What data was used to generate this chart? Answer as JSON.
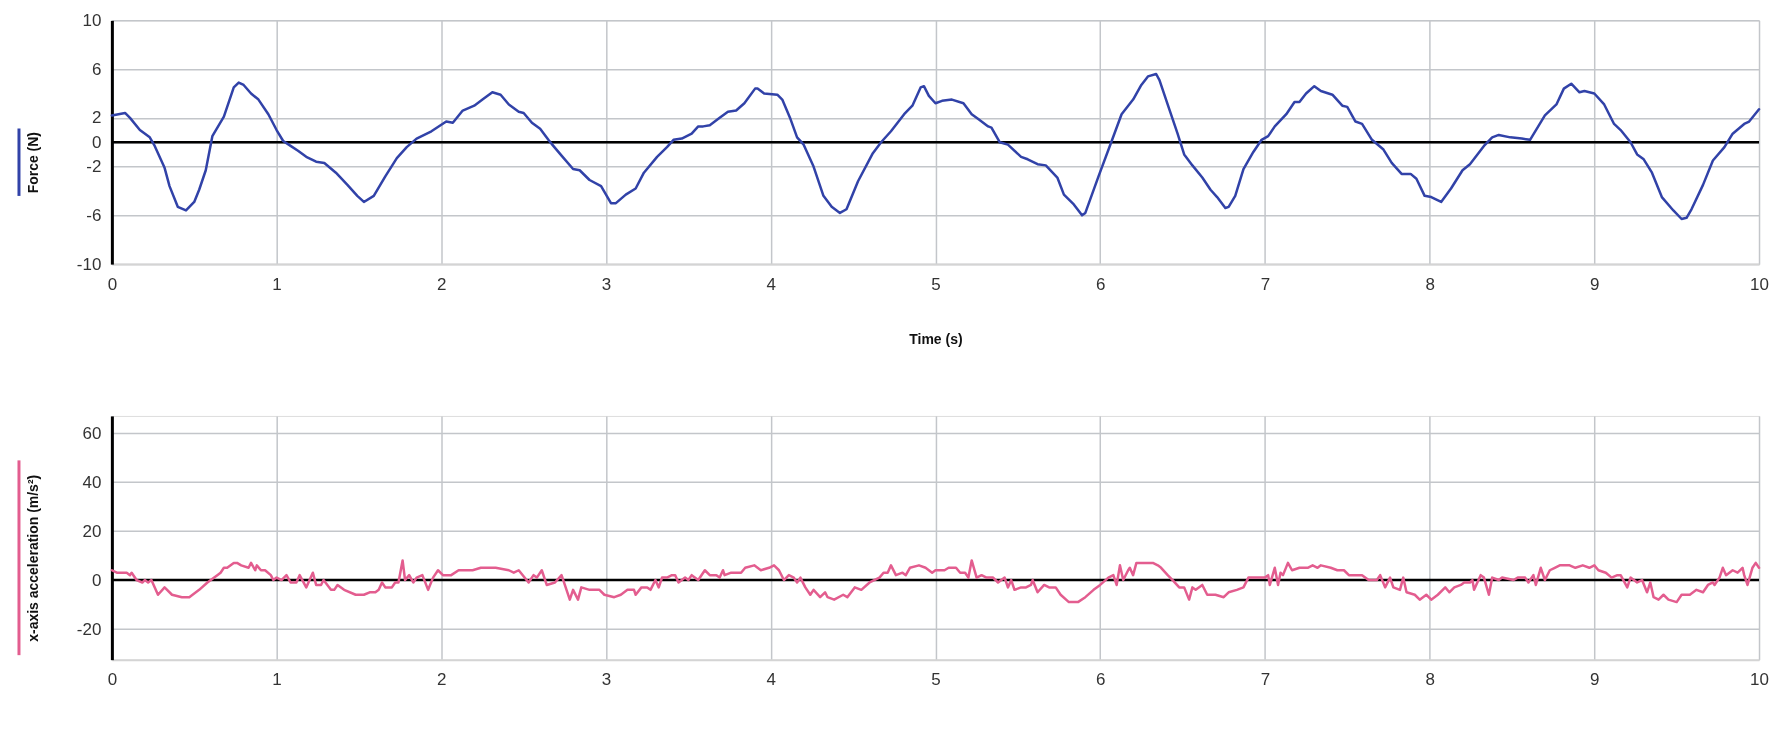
{
  "chart_data": [
    {
      "type": "line",
      "xlabel": "Time (s)",
      "ylabel": "Force (N)",
      "xlim": [
        0,
        10
      ],
      "xticks": [
        0,
        1,
        2,
        3,
        4,
        5,
        6,
        7,
        8,
        9,
        10
      ],
      "ylim": [
        -10,
        10
      ],
      "yticks": [
        -10,
        -6,
        -2,
        0,
        2,
        6,
        10
      ],
      "grid": true,
      "ref_lines": [
        {
          "axis": "y",
          "value": 0,
          "color": "#000000"
        }
      ],
      "series": [
        {
          "color": "#3142a8",
          "x": [
            0,
            0.08,
            0.11,
            0.17,
            0.23,
            0.26,
            0.32,
            0.35,
            0.4,
            0.45,
            0.5,
            0.53,
            0.57,
            0.61,
            0.68,
            0.74,
            0.77,
            0.8,
            0.845,
            0.89,
            0.95,
            1.0,
            1.04,
            1.085,
            1.13,
            1.18,
            1.24,
            1.29,
            1.36,
            1.43,
            1.49,
            1.53,
            1.59,
            1.66,
            1.73,
            1.79,
            1.85,
            1.94,
            2.03,
            2.07,
            2.13,
            2.2,
            2.25,
            2.31,
            2.36,
            2.41,
            2.47,
            2.5,
            2.55,
            2.6,
            2.65,
            2.68,
            2.73,
            2.8,
            2.84,
            2.9,
            2.97,
            3.03,
            3.06,
            3.12,
            3.18,
            3.23,
            3.31,
            3.37,
            3.41,
            3.46,
            3.52,
            3.56,
            3.59,
            3.63,
            3.69,
            3.74,
            3.79,
            3.84,
            3.905,
            3.92,
            3.96,
            4.04,
            4.07,
            4.12,
            4.16,
            4.2,
            4.26,
            4.32,
            4.37,
            4.42,
            4.46,
            4.53,
            4.62,
            4.67,
            4.73,
            4.81,
            4.86,
            4.91,
            4.93,
            4.96,
            5.0,
            5.04,
            5.1,
            5.17,
            5.22,
            5.26,
            5.32,
            5.34,
            5.39,
            5.44,
            5.52,
            5.56,
            5.62,
            5.67,
            5.74,
            5.78,
            5.84,
            5.89,
            5.91,
            5.99,
            6.07,
            6.13,
            6.2,
            6.25,
            6.29,
            6.34,
            6.36,
            6.42,
            6.47,
            6.51,
            6.56,
            6.62,
            6.67,
            6.71,
            6.76,
            6.78,
            6.82,
            6.87,
            6.93,
            6.98,
            7.02,
            7.06,
            7.13,
            7.18,
            7.21,
            7.25,
            7.3,
            7.34,
            7.41,
            7.47,
            7.5,
            7.55,
            7.59,
            7.65,
            7.72,
            7.77,
            7.83,
            7.885,
            7.92,
            7.97,
            8.01,
            8.07,
            8.13,
            8.2,
            8.245,
            8.33,
            8.38,
            8.42,
            8.49,
            8.56,
            8.61,
            8.7,
            8.77,
            8.815,
            8.86,
            8.91,
            8.94,
            9.0,
            9.06,
            9.12,
            9.16,
            9.22,
            9.26,
            9.3,
            9.35,
            9.41,
            9.48,
            9.53,
            9.56,
            9.59,
            9.66,
            9.72,
            9.79,
            9.84,
            9.91,
            9.94,
            10.0
          ],
          "values": [
            2.2,
            2.4,
            2.0,
            1.0,
            0.4,
            -0.3,
            -2.1,
            -3.6,
            -5.3,
            -5.6,
            -4.9,
            -3.9,
            -2.3,
            0.5,
            2.1,
            4.5,
            4.9,
            4.7,
            4.0,
            3.5,
            2.3,
            1.0,
            0.1,
            -0.3,
            -0.7,
            -1.2,
            -1.6,
            -1.7,
            -2.5,
            -3.5,
            -4.4,
            -4.9,
            -4.4,
            -2.8,
            -1.3,
            -0.4,
            0.3,
            0.9,
            1.7,
            1.6,
            2.6,
            3.0,
            3.5,
            4.1,
            3.9,
            3.1,
            2.5,
            2.4,
            1.6,
            1.1,
            0.2,
            -0.3,
            -1.1,
            -2.2,
            -2.3,
            -3.1,
            -3.6,
            -5.0,
            -5.0,
            -4.3,
            -3.8,
            -2.5,
            -1.2,
            -0.4,
            0.2,
            0.3,
            0.7,
            1.3,
            1.3,
            1.4,
            2.0,
            2.5,
            2.6,
            3.2,
            4.4,
            4.4,
            4.0,
            3.9,
            3.5,
            1.9,
            0.4,
            -0.2,
            -2.0,
            -4.4,
            -5.3,
            -5.8,
            -5.5,
            -3.2,
            -0.9,
            0.0,
            0.9,
            2.3,
            3.0,
            4.5,
            4.6,
            3.8,
            3.2,
            3.4,
            3.5,
            3.2,
            2.3,
            1.9,
            1.3,
            1.2,
            0.0,
            -0.2,
            -1.2,
            -1.4,
            -1.8,
            -1.9,
            -2.9,
            -4.3,
            -5.1,
            -6.0,
            -5.8,
            -2.8,
            0.1,
            2.3,
            3.5,
            4.7,
            5.4,
            5.6,
            5.1,
            2.7,
            0.7,
            -1.0,
            -1.9,
            -2.9,
            -3.9,
            -4.5,
            -5.4,
            -5.3,
            -4.4,
            -2.2,
            -0.8,
            0.2,
            0.5,
            1.3,
            2.3,
            3.3,
            3.3,
            4.0,
            4.6,
            4.2,
            3.9,
            3.0,
            2.9,
            1.7,
            1.5,
            0.2,
            -0.6,
            -1.7,
            -2.6,
            -2.6,
            -3.0,
            -4.4,
            -4.5,
            -4.9,
            -3.8,
            -2.3,
            -1.8,
            -0.3,
            0.4,
            0.6,
            0.4,
            0.3,
            0.2,
            2.2,
            3.1,
            4.4,
            4.8,
            4.1,
            4.2,
            4.0,
            3.1,
            1.5,
            1.0,
            0.0,
            -1.0,
            -1.4,
            -2.5,
            -4.5,
            -5.6,
            -6.3,
            -6.2,
            -5.5,
            -3.5,
            -1.5,
            -0.4,
            0.7,
            1.5,
            1.7,
            2.7
          ]
        }
      ]
    },
    {
      "type": "line",
      "ylabel": "x-axis acceleration (m/s²)",
      "xlim": [
        0,
        10
      ],
      "xticks": [
        0,
        1,
        2,
        3,
        4,
        5,
        6,
        7,
        8,
        9,
        10
      ],
      "ylim": [
        -32.5,
        67
      ],
      "yticks": [
        -20,
        0,
        20,
        40,
        60
      ],
      "grid": true,
      "ref_lines": [
        {
          "axis": "y",
          "value": 0,
          "color": "#000000"
        }
      ],
      "series": [
        {
          "color": "#e35d8f",
          "x": [
            0,
            0.03,
            0.065,
            0.09,
            0.11,
            0.12,
            0.15,
            0.185,
            0.2,
            0.22,
            0.24,
            0.28,
            0.32,
            0.365,
            0.425,
            0.47,
            0.53,
            0.58,
            0.64,
            0.66,
            0.68,
            0.7,
            0.74,
            0.76,
            0.785,
            0.83,
            0.845,
            0.87,
            0.88,
            0.905,
            0.93,
            0.965,
            0.98,
            1.0,
            1.03,
            1.06,
            1.085,
            1.12,
            1.14,
            1.18,
            1.22,
            1.24,
            1.27,
            1.285,
            1.33,
            1.35,
            1.37,
            1.41,
            1.48,
            1.53,
            1.565,
            1.6,
            1.62,
            1.64,
            1.66,
            1.7,
            1.72,
            1.74,
            1.765,
            1.78,
            1.805,
            1.83,
            1.85,
            1.885,
            1.92,
            1.95,
            1.98,
            2.01,
            2.06,
            2.105,
            2.15,
            2.19,
            2.24,
            2.33,
            2.41,
            2.44,
            2.47,
            2.53,
            2.56,
            2.58,
            2.61,
            2.64,
            2.69,
            2.73,
            2.75,
            2.78,
            2.8,
            2.83,
            2.85,
            2.9,
            2.96,
            2.99,
            3.05,
            3.09,
            3.13,
            3.17,
            3.18,
            3.215,
            3.25,
            3.27,
            3.3,
            3.32,
            3.34,
            3.37,
            3.4,
            3.42,
            3.44,
            3.48,
            3.5,
            3.52,
            3.56,
            3.6,
            3.63,
            3.67,
            3.69,
            3.71,
            3.72,
            3.76,
            3.82,
            3.845,
            3.9,
            3.94,
            3.99,
            4.02,
            4.05,
            4.08,
            4.11,
            4.14,
            4.16,
            4.18,
            4.21,
            4.24,
            4.26,
            4.3,
            4.33,
            4.345,
            4.385,
            4.44,
            4.465,
            4.51,
            4.55,
            4.6,
            4.66,
            4.685,
            4.71,
            4.73,
            4.76,
            4.8,
            4.82,
            4.845,
            4.9,
            4.94,
            4.98,
            5.0,
            5.055,
            5.08,
            5.125,
            5.15,
            5.18,
            5.2,
            5.22,
            5.25,
            5.28,
            5.31,
            5.35,
            5.38,
            5.42,
            5.44,
            5.46,
            5.48,
            5.52,
            5.55,
            5.58,
            5.59,
            5.62,
            5.66,
            5.69,
            5.73,
            5.76,
            5.81,
            5.865,
            5.91,
            5.96,
            6.0,
            6.05,
            6.08,
            6.1,
            6.12,
            6.14,
            6.17,
            6.18,
            6.2,
            6.22,
            6.32,
            6.35,
            6.37,
            6.41,
            6.44,
            6.48,
            6.51,
            6.54,
            6.56,
            6.58,
            6.62,
            6.65,
            6.7,
            6.75,
            6.78,
            6.83,
            6.87,
            6.9,
            6.96,
            7.0,
            7.02,
            7.03,
            7.06,
            7.08,
            7.095,
            7.11,
            7.14,
            7.165,
            7.21,
            7.26,
            7.29,
            7.32,
            7.34,
            7.4,
            7.44,
            7.48,
            7.51,
            7.59,
            7.63,
            7.68,
            7.7,
            7.73,
            7.76,
            7.78,
            7.82,
            7.84,
            7.86,
            7.91,
            7.94,
            7.98,
            8.01,
            8.05,
            8.095,
            8.12,
            8.15,
            8.19,
            8.21,
            8.245,
            8.26,
            8.27,
            8.31,
            8.33,
            8.36,
            8.38,
            8.42,
            8.44,
            8.51,
            8.535,
            8.58,
            8.6,
            8.63,
            8.645,
            8.675,
            8.7,
            8.73,
            8.76,
            8.79,
            8.85,
            8.885,
            8.93,
            8.97,
            9.0,
            9.025,
            9.07,
            9.105,
            9.14,
            9.16,
            9.2,
            9.22,
            9.26,
            9.29,
            9.32,
            9.34,
            9.36,
            9.39,
            9.42,
            9.45,
            9.5,
            9.53,
            9.58,
            9.62,
            9.66,
            9.69,
            9.72,
            9.73,
            9.76,
            9.78,
            9.8,
            9.84,
            9.87,
            9.9,
            9.91,
            9.93,
            9.96,
            9.98,
            10.0
          ],
          "values": [
            4,
            3,
            3,
            3,
            2,
            3,
            0,
            -1,
            0,
            -1,
            0,
            -6,
            -3,
            -6,
            -7,
            -7,
            -4,
            -1,
            2,
            3,
            5,
            5,
            7,
            7,
            6,
            5,
            7,
            4,
            6,
            4,
            4,
            2,
            0,
            1,
            0,
            2,
            -1,
            -1,
            2,
            -3,
            3,
            -2,
            -2,
            0,
            -4,
            -4,
            -2,
            -4,
            -6,
            -6,
            -5,
            -5,
            -4,
            -1,
            -3,
            -3,
            -1,
            -1,
            8,
            0,
            2,
            -1,
            1,
            2,
            -4,
            1,
            4,
            2,
            2,
            4,
            4,
            4,
            5,
            5,
            4,
            3,
            4,
            -1,
            2,
            1,
            4,
            -2,
            -1,
            2,
            -2,
            -8,
            -4,
            -8,
            -3,
            -4,
            -4,
            -6,
            -7,
            -6,
            -4,
            -4,
            -6,
            -3,
            -3,
            -4,
            0,
            -3,
            1,
            1,
            2,
            2,
            -1,
            1,
            0,
            2,
            0,
            4,
            2,
            2,
            1,
            4,
            2,
            3,
            3,
            5,
            6,
            4,
            5,
            6,
            4,
            0,
            2,
            1,
            -1,
            1,
            -3,
            -6,
            -4,
            -7,
            -5,
            -7,
            -8,
            -6,
            -7,
            -3,
            -4,
            -1,
            1,
            3,
            3,
            6,
            2,
            3,
            2,
            5,
            6,
            5,
            3,
            4,
            4,
            5,
            5,
            3,
            3,
            1,
            8,
            1,
            2,
            1,
            1,
            -1,
            1,
            -3,
            0,
            -4,
            -3,
            -3,
            -2,
            0,
            -5,
            -2,
            -3,
            -3,
            -6,
            -9,
            -9,
            -7,
            -4,
            -2,
            1,
            2,
            -2,
            6,
            0,
            4,
            5,
            2,
            7,
            7,
            6,
            5,
            2,
            0,
            -3,
            -3,
            -8,
            -3,
            -4,
            -2,
            -6,
            -6,
            -7,
            -5,
            -4,
            -3,
            1,
            1,
            1,
            2,
            -2,
            5,
            -2,
            3,
            2,
            7,
            4,
            5,
            5,
            6,
            5,
            6,
            5,
            4,
            4,
            2,
            2,
            0,
            0,
            2,
            -3,
            1,
            -3,
            -4,
            1,
            -5,
            -6,
            -8,
            -6,
            -8,
            -6,
            -3,
            -5,
            -3,
            -2,
            -1,
            -1,
            0,
            -4,
            2,
            1,
            -6,
            1,
            0,
            1,
            0,
            1,
            1,
            -1,
            2,
            -2,
            5,
            0,
            4,
            5,
            6,
            6,
            5,
            6,
            5,
            6,
            4,
            3,
            1,
            2,
            2,
            -3,
            1,
            -1,
            0,
            -5,
            -1,
            -7,
            -8,
            -6,
            -8,
            -9,
            -6,
            -6,
            -4,
            -5,
            -2,
            -1,
            -2,
            1,
            5,
            2,
            4,
            3,
            5,
            2,
            -2,
            5,
            7,
            5
          ]
        }
      ]
    }
  ]
}
